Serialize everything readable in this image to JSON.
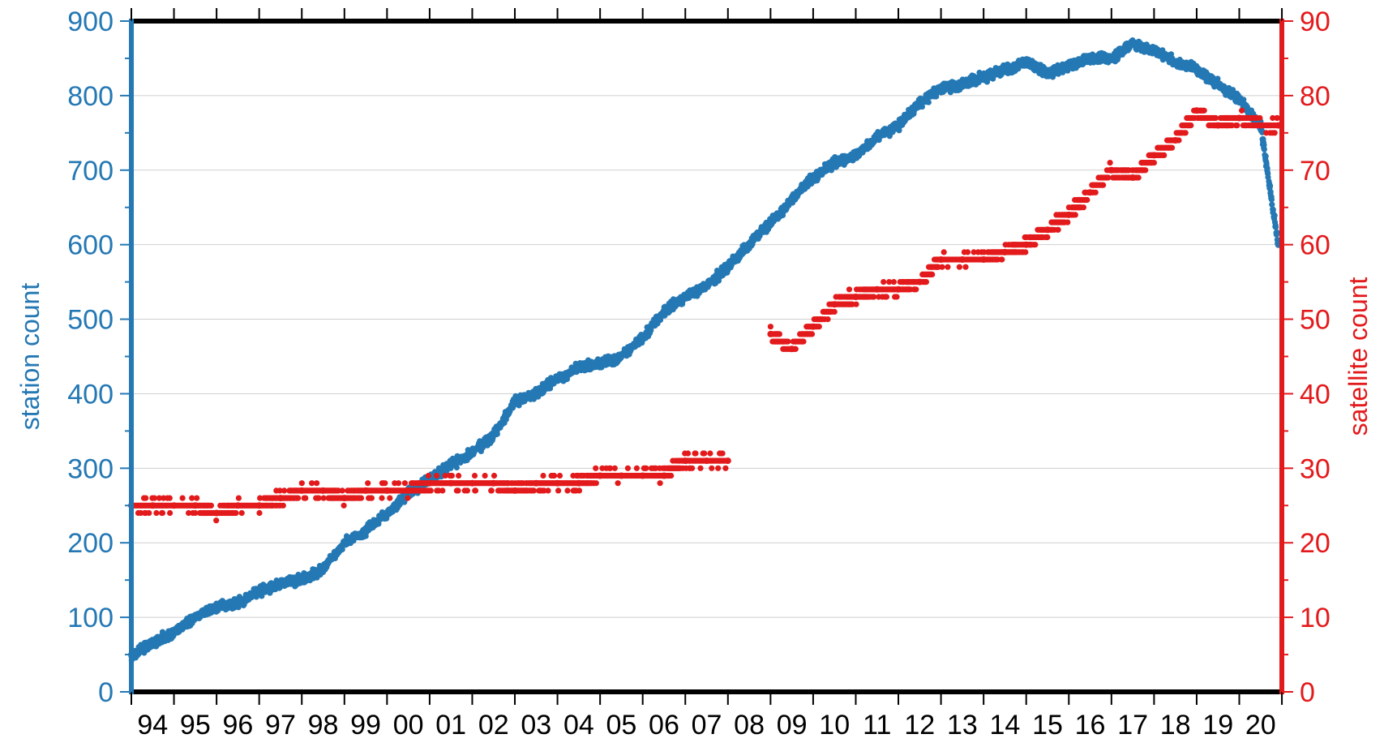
{
  "chart_data": {
    "type": "scatter",
    "title": "",
    "xlabel": "",
    "x_range": [
      "1994-01-01",
      "2020-12-31"
    ],
    "x_tick_labels": [
      "94",
      "95",
      "96",
      "97",
      "98",
      "99",
      "00",
      "01",
      "02",
      "03",
      "04",
      "05",
      "06",
      "07",
      "08",
      "09",
      "10",
      "11",
      "12",
      "13",
      "14",
      "15",
      "16",
      "17",
      "18",
      "19",
      "20"
    ],
    "y_left": {
      "label": "station count",
      "ylim": [
        0,
        900
      ],
      "ticks": [
        0,
        100,
        200,
        300,
        400,
        500,
        600,
        700,
        800,
        900
      ],
      "color": "#2478b4"
    },
    "y_right": {
      "label": "satellite count",
      "ylim": [
        0,
        90
      ],
      "ticks": [
        0,
        10,
        20,
        30,
        40,
        50,
        60,
        70,
        80,
        90
      ],
      "color": "#e31a1c"
    },
    "grid": true,
    "series": [
      {
        "name": "station count",
        "axis": "left",
        "color": "#2478b4",
        "x": [
          "1994-01",
          "1994-07",
          "1995-01",
          "1995-07",
          "1996-01",
          "1996-07",
          "1997-01",
          "1997-07",
          "1998-01",
          "1998-07",
          "1999-01",
          "1999-07",
          "2000-01",
          "2000-07",
          "2001-01",
          "2001-07",
          "2002-01",
          "2002-07",
          "2003-01",
          "2003-07",
          "2004-01",
          "2004-07",
          "2005-01",
          "2005-07",
          "2006-01",
          "2006-07",
          "2007-01",
          "2007-07",
          "2008-01",
          "2008-07",
          "2009-01",
          "2009-07",
          "2010-01",
          "2010-07",
          "2011-01",
          "2011-07",
          "2012-01",
          "2012-07",
          "2013-01",
          "2013-07",
          "2014-01",
          "2014-07",
          "2015-01",
          "2015-07",
          "2016-01",
          "2016-07",
          "2017-01",
          "2017-07",
          "2018-01",
          "2018-07",
          "2019-01",
          "2019-07",
          "2020-01",
          "2020-07",
          "2020-12"
        ],
        "values": [
          50,
          65,
          80,
          100,
          115,
          120,
          135,
          145,
          150,
          165,
          200,
          215,
          240,
          265,
          285,
          305,
          320,
          345,
          390,
          400,
          420,
          435,
          440,
          450,
          475,
          510,
          530,
          545,
          570,
          600,
          630,
          660,
          690,
          710,
          720,
          745,
          760,
          790,
          810,
          815,
          825,
          835,
          845,
          830,
          840,
          850,
          850,
          870,
          860,
          845,
          835,
          815,
          795,
          760,
          600
        ]
      },
      {
        "name": "satellite count",
        "axis": "right",
        "color": "#e31a1c",
        "x": [
          "1994-01",
          "1994-07",
          "1995-01",
          "1995-07",
          "1996-01",
          "1996-07",
          "1997-01",
          "1997-07",
          "1998-01",
          "1998-07",
          "1999-01",
          "1999-07",
          "2000-01",
          "2000-07",
          "2001-01",
          "2001-07",
          "2002-01",
          "2002-07",
          "2003-01",
          "2003-07",
          "2004-01",
          "2004-07",
          "2005-01",
          "2005-07",
          "2006-01",
          "2006-07",
          "2007-01",
          "2007-07",
          "2008-01",
          "2009-01",
          "2009-07",
          "2010-01",
          "2010-07",
          "2011-01",
          "2011-07",
          "2012-01",
          "2012-07",
          "2013-01",
          "2013-07",
          "2014-01",
          "2014-07",
          "2015-01",
          "2015-07",
          "2016-01",
          "2016-07",
          "2017-01",
          "2017-07",
          "2018-01",
          "2018-07",
          "2019-01",
          "2019-07",
          "2020-01",
          "2020-07",
          "2020-12"
        ],
        "values": [
          25,
          25,
          25,
          25,
          24,
          25,
          25,
          26,
          27,
          27,
          26,
          27,
          27,
          27,
          28,
          28,
          28,
          28,
          27,
          28,
          28,
          28,
          29,
          29,
          29,
          29,
          31,
          31,
          31,
          48,
          46,
          49,
          52,
          53,
          54,
          54,
          55,
          58,
          58,
          58,
          59,
          60,
          62,
          64,
          67,
          70,
          69,
          72,
          74,
          78,
          76,
          77,
          76,
          76
        ]
      }
    ]
  }
}
